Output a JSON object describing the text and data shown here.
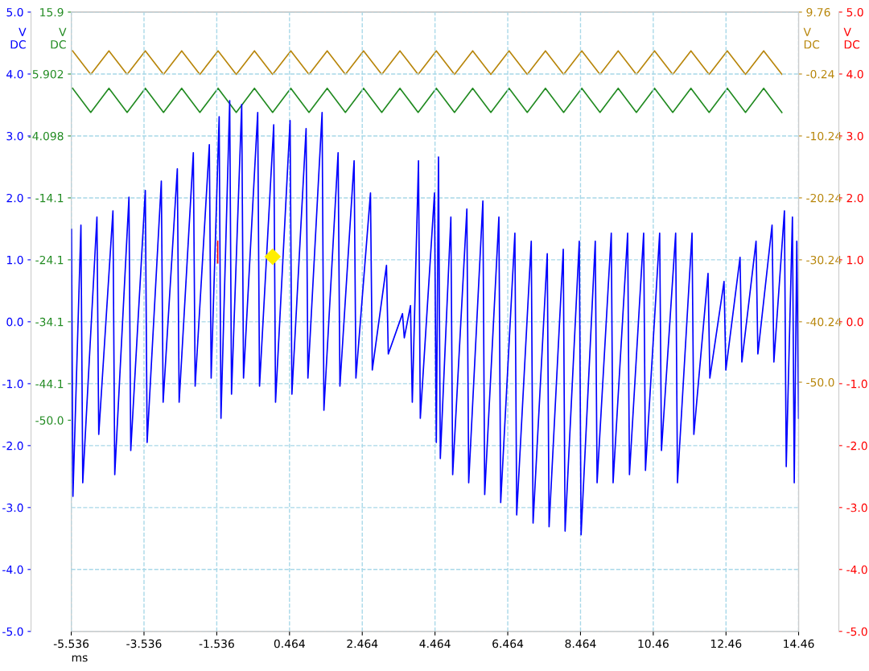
{
  "chart_data": {
    "type": "line",
    "annotations": [
      "V\nDC"
    ],
    "xlabel": "ms",
    "ylabel": "V\nDC",
    "y2label": "V\nDC",
    "y3label": "V\nDC",
    "xlim": [
      -5.536,
      14.46
    ],
    "xticks": [
      -5.536,
      -3.536,
      -1.536,
      0.464,
      2.464,
      4.464,
      6.464,
      8.464,
      {
        "value": 10.464,
        "label": "10.46"
      },
      {
        "value": 12.464,
        "label": "12.46"
      },
      14.46
    ],
    "ylim": [
      -5.0,
      5.0
    ],
    "yticks": [
      {
        "value": 5,
        "label": "5.0"
      },
      {
        "value": 4,
        "label": "4.0"
      },
      {
        "value": 3,
        "label": "3.0"
      },
      {
        "value": 2,
        "label": "2.0"
      },
      {
        "value": 1,
        "label": "1.0"
      },
      {
        "value": 0,
        "label": "0.0"
      },
      {
        "value": -1,
        "label": "-1.0"
      },
      {
        "value": -2,
        "label": "-2.0"
      },
      {
        "value": -3,
        "label": "-3.0"
      },
      {
        "value": -4,
        "label": "-4.0"
      },
      {
        "value": -5,
        "label": "-5.0"
      }
    ],
    "y2lim": [
      -90.24,
      9.76
    ],
    "y2ticks": [
      9.76,
      -0.24,
      -10.24,
      -20.24,
      -30.24,
      -40.24,
      {
        "value": -50.0,
        "label": "-50.0"
      }
    ],
    "y3lim": [
      -84.098,
      15.902
    ],
    "y3ticks": [
      {
        "value": 15.902,
        "label": "15.9"
      },
      5.902,
      -4.098,
      {
        "value": -14.098,
        "label": "-14.1"
      },
      {
        "value": -24.098,
        "label": "-24.1"
      },
      {
        "value": -34.098,
        "label": "-34.1"
      },
      {
        "value": -44.098,
        "label": "-44.1"
      },
      {
        "value": -50.0,
        "label": "-50.0"
      }
    ],
    "grid": true,
    "line_style": "solid",
    "marker": "none",
    "series": [
      {
        "axis": "y",
        "color": "#0000ff",
        "x": [
          -5.53,
          -5.49,
          -5.27,
          -5.22,
          -4.83,
          -4.78,
          -4.39,
          -4.34,
          -3.95,
          -3.9,
          -3.5,
          -3.45,
          -3.06,
          -3.01,
          -2.62,
          -2.57,
          -2.18,
          -2.13,
          -1.74,
          -1.69,
          -1.47,
          -1.42,
          -1.18,
          -1.13,
          -0.85,
          -0.8,
          -0.41,
          -0.36,
          0.03,
          0.08,
          0.48,
          0.53,
          0.92,
          0.97,
          1.36,
          1.41,
          1.8,
          1.85,
          2.24,
          2.29,
          2.69,
          2.74,
          3.13,
          3.18,
          3.57,
          3.62,
          3.79,
          3.84,
          4.01,
          4.06,
          4.45,
          4.5,
          4.56,
          4.61,
          4.9,
          4.95,
          5.34,
          5.39,
          5.78,
          5.83,
          6.22,
          6.27,
          6.66,
          6.71,
          7.11,
          7.16,
          7.55,
          7.6,
          7.99,
          8.04,
          8.43,
          8.48,
          8.87,
          8.92,
          9.31,
          9.36,
          9.76,
          9.81,
          10.2,
          10.25,
          10.64,
          10.69,
          11.08,
          11.13,
          11.53,
          11.58,
          11.97,
          12.02,
          12.41,
          12.46,
          12.85,
          12.9,
          13.29,
          13.34,
          13.73,
          13.78,
          14.07,
          14.12,
          14.29,
          14.34,
          14.41,
          14.46
        ],
        "values": [
          1.49,
          -2.82,
          1.56,
          -2.6,
          1.69,
          -1.82,
          1.79,
          -2.47,
          2.01,
          -2.08,
          2.12,
          -1.95,
          2.27,
          -1.3,
          2.47,
          -1.3,
          2.73,
          -1.04,
          2.86,
          -0.91,
          3.31,
          -1.56,
          3.57,
          -1.17,
          3.51,
          -0.91,
          3.38,
          -1.04,
          3.18,
          -1.3,
          3.25,
          -1.17,
          3.12,
          -0.91,
          3.38,
          -1.43,
          2.73,
          -1.04,
          2.6,
          -0.91,
          2.08,
          -0.78,
          0.91,
          -0.52,
          0.13,
          -0.26,
          0.26,
          -1.3,
          2.6,
          -1.56,
          2.08,
          -1.95,
          2.66,
          -2.21,
          1.69,
          -2.47,
          1.82,
          -2.6,
          1.95,
          -2.79,
          1.69,
          -2.92,
          1.43,
          -3.12,
          1.3,
          -3.25,
          1.1,
          -3.31,
          1.17,
          -3.38,
          1.3,
          -3.44,
          1.3,
          -2.6,
          1.43,
          -2.6,
          1.43,
          -2.47,
          1.43,
          -2.4,
          1.43,
          -2.08,
          1.43,
          -2.6,
          1.43,
          -1.82,
          0.78,
          -0.91,
          0.65,
          -0.78,
          1.04,
          -0.65,
          1.3,
          -0.52,
          1.56,
          -0.65,
          1.79,
          -2.34,
          1.69,
          -2.6,
          1.3,
          -1.56
        ]
      },
      {
        "axis": "y2",
        "color": "#b8860b",
        "x": [
          -5.5,
          -5.0,
          -4.5,
          -4.0,
          -3.5,
          -3.0,
          -2.5,
          -2.0,
          -1.5,
          -1.0,
          -0.5,
          0.0,
          0.5,
          1.0,
          1.5,
          2.0,
          2.5,
          3.0,
          3.5,
          4.0,
          4.5,
          5.0,
          5.5,
          6.0,
          6.5,
          7.0,
          7.5,
          8.0,
          8.5,
          9.0,
          9.5,
          10.0,
          10.5,
          11.0,
          11.5,
          12.0,
          12.5,
          13.0,
          13.5,
          14.0
        ],
        "values": [
          3.5,
          -0.3,
          3.5,
          -0.3,
          3.5,
          -0.3,
          3.5,
          -0.3,
          3.5,
          -0.3,
          3.5,
          -0.3,
          3.5,
          -0.3,
          3.5,
          -0.3,
          3.5,
          -0.3,
          3.5,
          -0.3,
          3.5,
          -0.3,
          3.5,
          -0.3,
          3.5,
          -0.3,
          3.5,
          -0.3,
          3.5,
          -0.3,
          3.5,
          -0.3,
          3.5,
          -0.3,
          3.5,
          -0.3,
          3.5,
          -0.3,
          3.5,
          -0.3
        ]
      },
      {
        "axis": "y3",
        "color": "#228b22",
        "x": [
          -5.5,
          -5.0,
          -4.5,
          -4.0,
          -3.5,
          -3.0,
          -2.5,
          -2.0,
          -1.5,
          -1.0,
          -0.5,
          0.0,
          0.5,
          1.0,
          1.5,
          2.0,
          2.5,
          3.0,
          3.5,
          4.0,
          4.5,
          5.0,
          5.5,
          6.0,
          6.5,
          7.0,
          7.5,
          8.0,
          8.5,
          9.0,
          9.5,
          10.0,
          10.5,
          11.0,
          11.5,
          12.0,
          12.5,
          13.0,
          13.5,
          14.0
        ],
        "values": [
          3.6,
          -0.3,
          3.6,
          -0.3,
          3.6,
          -0.3,
          3.6,
          -0.3,
          3.6,
          -0.3,
          3.6,
          -0.3,
          3.6,
          -0.3,
          3.6,
          -0.3,
          3.6,
          -0.3,
          3.6,
          -0.3,
          3.6,
          -0.3,
          3.6,
          -0.3,
          3.6,
          -0.3,
          3.6,
          -0.3,
          3.6,
          -0.3,
          3.6,
          -0.3,
          3.6,
          -0.3,
          3.6,
          -0.3,
          3.6,
          -0.3,
          3.6,
          -0.3
        ]
      },
      {
        "axis": "y",
        "color": "#ff0000",
        "x": [
          -1.51,
          -1.51
        ],
        "values": [
          1.3,
          0.95
        ]
      },
      {
        "axis": "y",
        "type": "scatter",
        "marker": "diamond",
        "color": "#ffee00",
        "x": [
          0.0
        ],
        "values": [
          1.05
        ]
      }
    ]
  }
}
